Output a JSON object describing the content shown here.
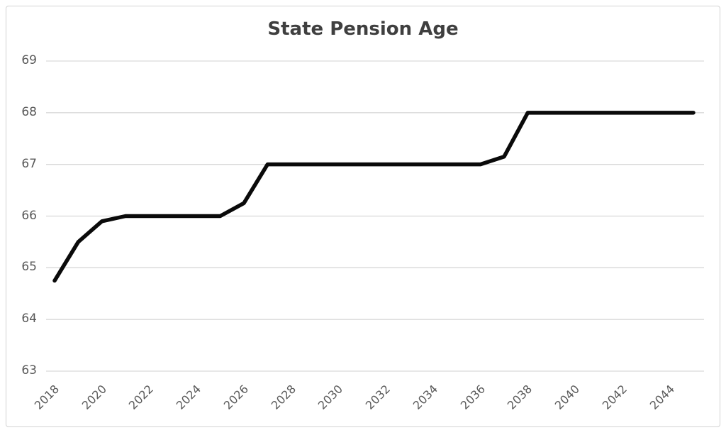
{
  "chart_data": {
    "type": "line",
    "title": "State Pension Age",
    "series": [
      {
        "name": "State Pension Age",
        "x": [
          2018,
          2019,
          2020,
          2021,
          2022,
          2023,
          2024,
          2025,
          2026,
          2027,
          2028,
          2029,
          2030,
          2031,
          2032,
          2033,
          2034,
          2035,
          2036,
          2037,
          2038,
          2039,
          2040,
          2041,
          2042,
          2043,
          2044,
          2045
        ],
        "values": [
          64.75,
          65.5,
          65.9,
          66,
          66,
          66,
          66,
          66,
          66.25,
          67,
          67,
          67,
          67,
          67,
          67,
          67,
          67,
          67,
          67,
          67.15,
          68,
          68,
          68,
          68,
          68,
          68,
          68,
          68
        ]
      }
    ],
    "xlabel": "",
    "ylabel": "",
    "xlim": [
      2018,
      2045
    ],
    "ylim": [
      63,
      69
    ],
    "y_ticks": [
      63,
      64,
      65,
      66,
      67,
      68,
      69
    ],
    "x_tick_labels": [
      "2018",
      "2020",
      "2022",
      "2024",
      "2026",
      "2028",
      "2030",
      "2032",
      "2034",
      "2036",
      "2038",
      "2040",
      "2042",
      "2044"
    ],
    "grid": "horizontal",
    "legend": "none"
  },
  "colors": {
    "title_text": "#3f3f3f",
    "axis_text": "#595959",
    "gridline": "#d9d9d9",
    "line": "#0a0a0a",
    "frame_border": "#d2d2d2",
    "background": "#ffffff"
  }
}
